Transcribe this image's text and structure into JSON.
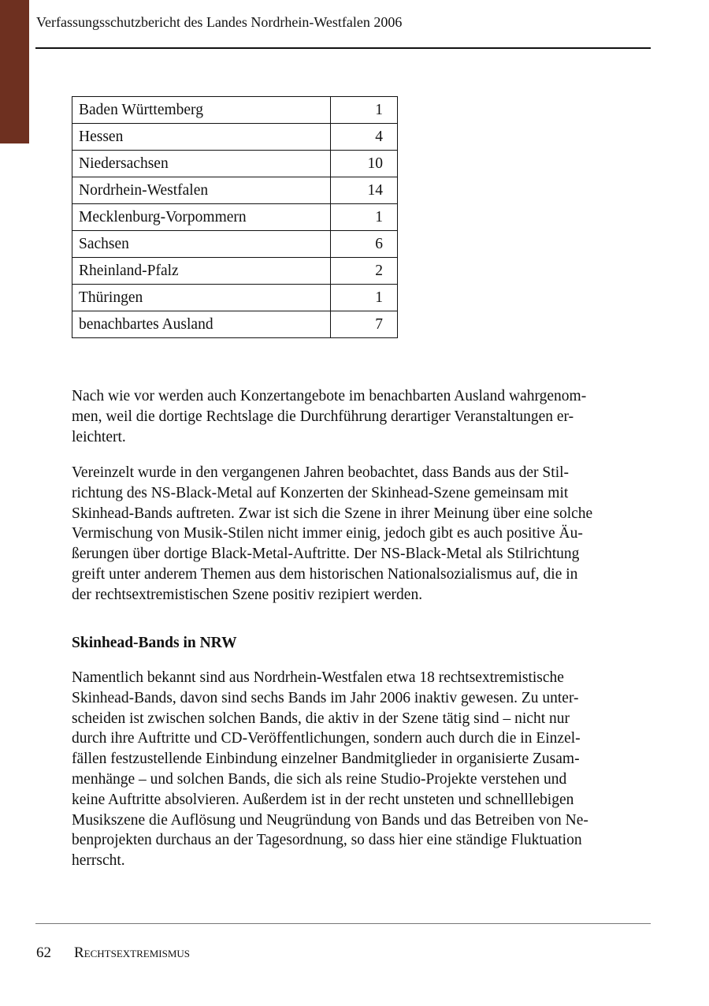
{
  "header": {
    "title": "Verfassungsschutzbericht des Landes Nordrhein-Westfalen 2006"
  },
  "table": {
    "rows": [
      {
        "label": "Baden Württemberg",
        "value": "1"
      },
      {
        "label": "Hessen",
        "value": "4"
      },
      {
        "label": "Niedersachsen",
        "value": "10"
      },
      {
        "label": "Nordrhein-Westfalen",
        "value": "14"
      },
      {
        "label": "Mecklenburg-Vorpommern",
        "value": "1"
      },
      {
        "label": "Sachsen",
        "value": "6"
      },
      {
        "label": "Rheinland-Pfalz",
        "value": "2"
      },
      {
        "label": "Thüringen",
        "value": "1"
      },
      {
        "label": "benachbartes Ausland",
        "value": "7"
      }
    ]
  },
  "paragraphs": [
    [
      "Nach wie vor werden auch Konzertangebote im benachbarten Ausland wahrgenom-",
      "men, weil die dortige Rechtslage die Durchführung derartiger Veranstaltungen er-",
      "leichtert."
    ],
    [
      "Vereinzelt wurde in den vergangenen Jahren beobachtet, dass Bands aus der Stil-",
      "richtung des NS-Black-Metal auf Konzerten der Skinhead-Szene gemeinsam mit",
      "Skinhead-Bands auftreten. Zwar ist sich die Szene in ihrer Meinung über eine solche",
      "Vermischung von Musik-Stilen nicht immer einig, jedoch gibt es auch positive Äu-",
      "ßerungen über dortige Black-Metal-Auftritte. Der NS-Black-Metal als Stilrichtung",
      "greift unter anderem Themen aus dem historischen Nationalsozialismus auf, die in",
      "der rechtsextremistischen Szene positiv rezipiert werden."
    ]
  ],
  "section": {
    "heading": "Skinhead-Bands in NRW",
    "lines": [
      "Namentlich bekannt sind aus Nordrhein-Westfalen etwa 18 rechtsextremistische",
      "Skinhead-Bands, davon sind sechs Bands im Jahr 2006 inaktiv gewesen. Zu unter-",
      "scheiden ist zwischen solchen Bands, die aktiv in der Szene tätig sind – nicht nur",
      "durch ihre Auftritte und CD-Veröffentlichungen, sondern auch durch die in Einzel-",
      "fällen festzustellende Einbindung einzelner Bandmitglieder in organisierte Zusam-",
      "menhänge – und solchen Bands, die sich als reine Studio-Projekte verstehen und",
      "keine Auftritte absolvieren. Außerdem ist in der recht unsteten und schnelllebigen",
      "Musikszene die Auflösung und Neugründung von Bands und das Betreiben von Ne-",
      "benprojekten durchaus an der Tagesordnung, so dass hier eine ständige Fluktuation",
      "herrscht."
    ]
  },
  "footer": {
    "page_number": "62",
    "section": "Rechtsextremismus"
  },
  "colors": {
    "accent_bar": "#6e3020"
  }
}
